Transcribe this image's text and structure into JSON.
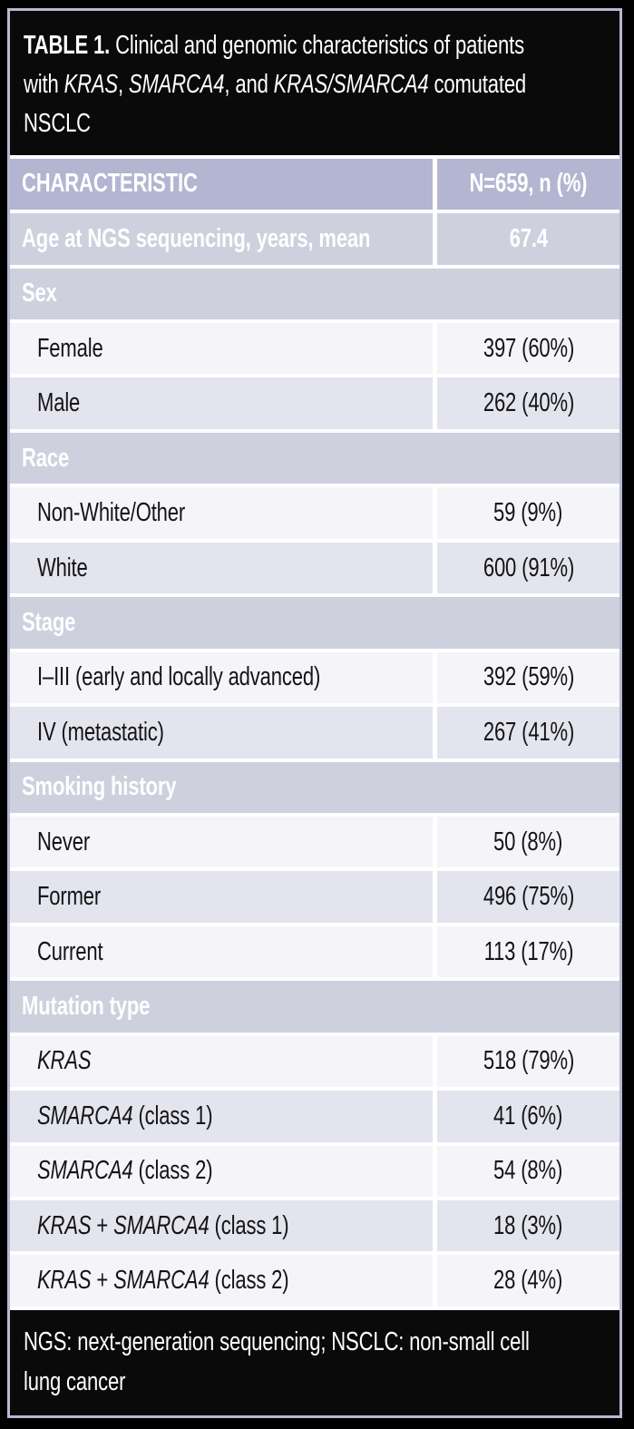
{
  "colors": {
    "background": "#000000",
    "frame_border": "#b7b8d2",
    "header_row_bg": "#b3b5d1",
    "section_row_bg": "#ced0de",
    "data_row_light_bg": "#f5f5f9",
    "data_row_dark_bg": "#e3e4ee",
    "divider": "#ffffff",
    "title_text": "#ffffff",
    "data_text": "#141414"
  },
  "title": {
    "lines": [
      {
        "segments": [
          {
            "t": "TABLE 1.",
            "b": true
          },
          {
            "t": " Clinical and genomic characteristics of patients"
          }
        ]
      },
      {
        "segments": [
          {
            "t": "with "
          },
          {
            "t": "KRAS",
            "i": true
          },
          {
            "t": ", "
          },
          {
            "t": "SMARCA4",
            "i": true
          },
          {
            "t": ", and "
          },
          {
            "t": "KRAS/SMARCA4",
            "i": true
          },
          {
            "t": " comutated"
          }
        ]
      },
      {
        "segments": [
          {
            "t": "NSCLC"
          }
        ]
      }
    ]
  },
  "table": {
    "header": {
      "characteristic": "CHARACTERISTIC",
      "n": "N=659, n (%)"
    },
    "rows": [
      {
        "type": "highlight",
        "label": [
          {
            "t": "Age at NGS sequencing, years, mean"
          }
        ],
        "value": "67.4"
      },
      {
        "type": "section",
        "label": [
          {
            "t": "Sex"
          }
        ]
      },
      {
        "type": "data",
        "label": [
          {
            "t": "Female"
          }
        ],
        "value": "397 (60%)"
      },
      {
        "type": "data",
        "label": [
          {
            "t": "Male"
          }
        ],
        "value": "262 (40%)"
      },
      {
        "type": "section",
        "label": [
          {
            "t": "Race"
          }
        ]
      },
      {
        "type": "data",
        "label": [
          {
            "t": "Non-White/Other"
          }
        ],
        "value": "59 (9%)"
      },
      {
        "type": "data",
        "label": [
          {
            "t": "White"
          }
        ],
        "value": "600 (91%)"
      },
      {
        "type": "section",
        "label": [
          {
            "t": "Stage"
          }
        ]
      },
      {
        "type": "data",
        "label": [
          {
            "t": "I–III (early and locally advanced)"
          }
        ],
        "value": "392 (59%)"
      },
      {
        "type": "data",
        "label": [
          {
            "t": "IV (metastatic)"
          }
        ],
        "value": "267 (41%)"
      },
      {
        "type": "section",
        "label": [
          {
            "t": "Smoking history"
          }
        ]
      },
      {
        "type": "data",
        "label": [
          {
            "t": "Never"
          }
        ],
        "value": "50 (8%)"
      },
      {
        "type": "data",
        "label": [
          {
            "t": "Former"
          }
        ],
        "value": "496 (75%)"
      },
      {
        "type": "data",
        "label": [
          {
            "t": "Current"
          }
        ],
        "value": "113 (17%)"
      },
      {
        "type": "section",
        "label": [
          {
            "t": "Mutation type"
          }
        ]
      },
      {
        "type": "data",
        "label": [
          {
            "t": "KRAS",
            "i": true
          }
        ],
        "value": "518 (79%)"
      },
      {
        "type": "data",
        "label": [
          {
            "t": "SMARCA4",
            "i": true
          },
          {
            "t": " (class 1)"
          }
        ],
        "value": "41 (6%)"
      },
      {
        "type": "data",
        "label": [
          {
            "t": "SMARCA4",
            "i": true
          },
          {
            "t": " (class 2)"
          }
        ],
        "value": "54 (8%)"
      },
      {
        "type": "data",
        "label": [
          {
            "t": "KRAS",
            "i": true
          },
          {
            "t": " + "
          },
          {
            "t": "SMARCA4",
            "i": true
          },
          {
            "t": " (class 1)"
          }
        ],
        "value": "18 (3%)"
      },
      {
        "type": "data",
        "label": [
          {
            "t": "KRAS",
            "i": true
          },
          {
            "t": " + "
          },
          {
            "t": "SMARCA4",
            "i": true
          },
          {
            "t": " (class 2)"
          }
        ],
        "value": "28 (4%)"
      }
    ]
  },
  "footnote": {
    "lines": [
      "NGS: next-generation sequencing; NSCLC: non-small cell",
      "lung cancer"
    ]
  }
}
